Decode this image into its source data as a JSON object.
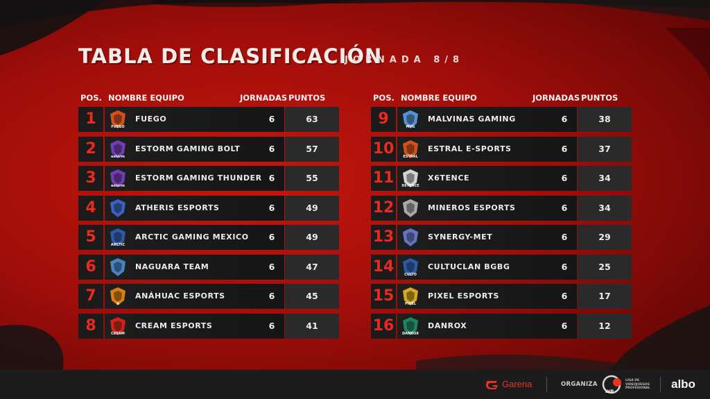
{
  "title": "TABLA DE CLASIFICACIÓN",
  "subtitle": "JORNADA 8/8",
  "headers": {
    "pos": "POS.",
    "name": "NOMBRE EQUIPO",
    "jornadas": "JORNADAS",
    "puntos": "PUNTOS"
  },
  "colors": {
    "accent": "#ea2a1c",
    "row_bg": "#1b1b1b",
    "points_bg": "#2a2a2a",
    "footer_bg": "#1c1c1c"
  },
  "teams_left": [
    {
      "pos": "1",
      "name": "FUEGO",
      "jornadas": "6",
      "puntos": "63",
      "logo": "fuego-logo",
      "logo_color": "#e8561c",
      "logo_text": "FUEGO"
    },
    {
      "pos": "2",
      "name": "ESTORM GAMING BOLT",
      "jornadas": "6",
      "puntos": "57",
      "logo": "estorm-logo",
      "logo_color": "#7b3fc4",
      "logo_text": "estorm"
    },
    {
      "pos": "3",
      "name": "ESTORM GAMING THUNDER",
      "jornadas": "6",
      "puntos": "55",
      "logo": "estorm-logo",
      "logo_color": "#7b3fc4",
      "logo_text": "estorm"
    },
    {
      "pos": "4",
      "name": "ATHERIS ESPORTS",
      "jornadas": "6",
      "puntos": "49",
      "logo": "atheris-logo",
      "logo_color": "#3d6ad6",
      "logo_text": ""
    },
    {
      "pos": "5",
      "name": "ARCTIC GAMING MEXICO",
      "jornadas": "6",
      "puntos": "49",
      "logo": "arctic-logo",
      "logo_color": "#2f5fb8",
      "logo_text": "ARCTIC"
    },
    {
      "pos": "6",
      "name": "NAGUARA TEAM",
      "jornadas": "6",
      "puntos": "47",
      "logo": "naguara-logo",
      "logo_color": "#4a8fd6",
      "logo_text": ""
    },
    {
      "pos": "7",
      "name": "ANÁHUAC ESPORTS",
      "jornadas": "6",
      "puntos": "45",
      "logo": "anahuac-logo",
      "logo_color": "#f08a12",
      "logo_text": "A"
    },
    {
      "pos": "8",
      "name": "CREAM ESPORTS",
      "jornadas": "6",
      "puntos": "41",
      "logo": "cream-logo",
      "logo_color": "#e6221a",
      "logo_text": "CREAM"
    }
  ],
  "teams_right": [
    {
      "pos": "9",
      "name": "MALVINAS GAMING",
      "jornadas": "6",
      "puntos": "38",
      "logo": "malvinas-logo",
      "logo_color": "#5aa0e8",
      "logo_text": "MVG"
    },
    {
      "pos": "10",
      "name": "ESTRAL E-SPORTS",
      "jornadas": "6",
      "puntos": "37",
      "logo": "estral-logo",
      "logo_color": "#e8561c",
      "logo_text": "ESTRAL"
    },
    {
      "pos": "11",
      "name": "X6TENCE",
      "jornadas": "6",
      "puntos": "34",
      "logo": "x6tence-logo",
      "logo_color": "#e8e8e8",
      "logo_text": "X6TENCE"
    },
    {
      "pos": "12",
      "name": "MINEROS ESPORTS",
      "jornadas": "6",
      "puntos": "34",
      "logo": "mineros-logo",
      "logo_color": "#b8b8b8",
      "logo_text": ""
    },
    {
      "pos": "13",
      "name": "SYNERGY-MET",
      "jornadas": "6",
      "puntos": "29",
      "logo": "synergy-logo",
      "logo_color": "#6a7fd6",
      "logo_text": ""
    },
    {
      "pos": "14",
      "name": "CULTUCLAN BGBG",
      "jornadas": "6",
      "puntos": "25",
      "logo": "cultuclan-logo",
      "logo_color": "#2f5fb8",
      "logo_text": "CULTO"
    },
    {
      "pos": "15",
      "name": "PIXEL ESPORTS",
      "jornadas": "6",
      "puntos": "17",
      "logo": "pixel-logo",
      "logo_color": "#f0b81c",
      "logo_text": "PIXEL"
    },
    {
      "pos": "16",
      "name": "DANROX",
      "jornadas": "6",
      "puntos": "12",
      "logo": "danrox-logo",
      "logo_color": "#1f8f6a",
      "logo_text": "DANROX"
    }
  ],
  "footer": {
    "sponsor": "Garena",
    "organiza": "ORGANIZA",
    "lvp_badge": "LVP",
    "lvp_text": [
      "LIGA DE",
      "VIDEOJUEGOS",
      "PROFESIONAL"
    ],
    "partner": "albo"
  }
}
